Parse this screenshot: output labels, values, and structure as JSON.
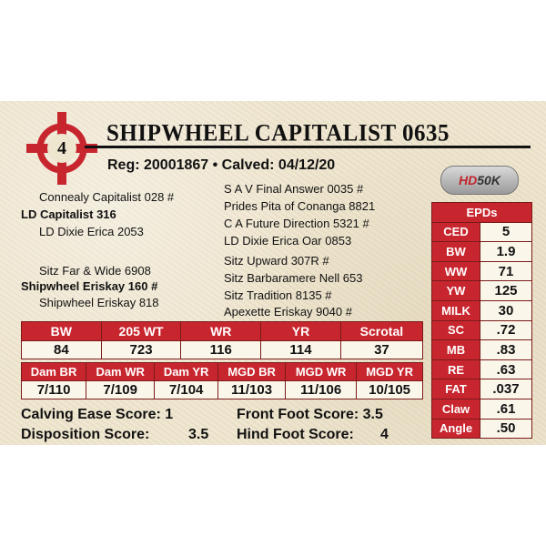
{
  "lot_number": "4",
  "title": "SHIPWHEEL CAPITALIST 0635",
  "registration": "Reg: 20001867 • Calved: 04/12/20",
  "badge": {
    "hd": "HD",
    "k": "50K"
  },
  "pedigree": {
    "sire_sire": "Connealy Capitalist 028 #",
    "sire": "LD Capitalist 316",
    "sire_dam": "LD Dixie Erica 2053",
    "dam_sire": "Sitz Far & Wide 6908",
    "dam": "Shipwheel Eriskay 160 #",
    "dam_dam": "Shipwheel Eriskay 818",
    "right_col": [
      "S A V Final Answer 0035 #",
      "Prides Pita of Conanga 8821",
      "C A Future Direction 5321 #",
      "LD Dixie Erica Oar 0853",
      "Sitz Upward 307R #",
      "Sitz Barbaramere Nell 653",
      "Sitz Tradition 8135 #",
      "Apexette Eriskay 9040 #"
    ]
  },
  "performance": {
    "headers": [
      "BW",
      "205 WT",
      "WR",
      "YR",
      "Scrotal"
    ],
    "values": [
      "84",
      "723",
      "116",
      "114",
      "37"
    ]
  },
  "dam_performance": {
    "headers": [
      "Dam BR",
      "Dam WR",
      "Dam YR",
      "MGD BR",
      "MGD WR",
      "MGD YR"
    ],
    "values": [
      "7/110",
      "7/109",
      "7/104",
      "11/103",
      "11/106",
      "10/105"
    ]
  },
  "scores": {
    "calving": "Calving Ease Score: 1",
    "front_foot": "Front Foot Score: 3.5",
    "disposition": "Disposition Score:",
    "disposition_val": "3.5",
    "hind_foot": "Hind Foot Score:",
    "hind_foot_val": "4"
  },
  "epds": {
    "title": "EPDs",
    "rows": [
      {
        "label": "CED",
        "value": "5"
      },
      {
        "label": "BW",
        "value": "1.9"
      },
      {
        "label": "WW",
        "value": "71"
      },
      {
        "label": "YW",
        "value": "125"
      },
      {
        "label": "MILK",
        "value": "30"
      },
      {
        "label": "SC",
        "value": ".72"
      },
      {
        "label": "MB",
        "value": ".83"
      },
      {
        "label": "RE",
        "value": ".63"
      },
      {
        "label": "FAT",
        "value": ".037"
      },
      {
        "label": "Claw",
        "value": ".61"
      },
      {
        "label": "Angle",
        "value": ".50"
      }
    ]
  },
  "colors": {
    "accent_red": "#c8262f",
    "background": "#efe6cf"
  }
}
